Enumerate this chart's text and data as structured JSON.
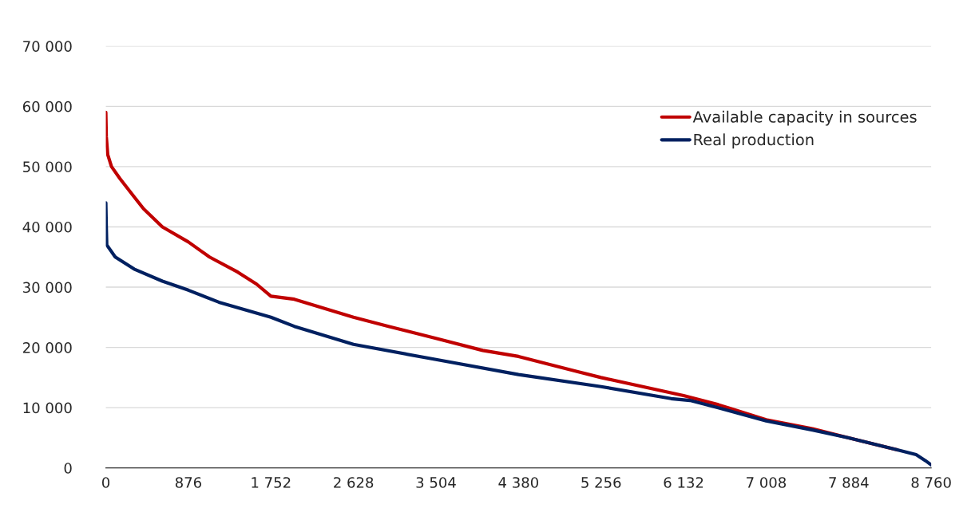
{
  "chart_data": {
    "type": "line",
    "series": [
      {
        "name": "Available capacity in sources",
        "color": "#c00000",
        "x": [
          0,
          5,
          20,
          60,
          150,
          300,
          400,
          600,
          876,
          1100,
          1400,
          1600,
          1752,
          2000,
          2628,
          3000,
          3504,
          4000,
          4380,
          5000,
          5256,
          6132,
          6500,
          7008,
          7500,
          7884,
          8400
        ],
        "values": [
          59000,
          55000,
          52000,
          50000,
          48000,
          45000,
          43000,
          40000,
          37500,
          35000,
          32500,
          30500,
          28500,
          28000,
          25000,
          23500,
          21500,
          19500,
          18500,
          16000,
          15000,
          12000,
          10500,
          8000,
          6500,
          5000,
          3000
        ]
      },
      {
        "name": "Real production",
        "color": "#002060",
        "x": [
          0,
          5,
          10,
          100,
          300,
          600,
          876,
          1200,
          1752,
          2000,
          2628,
          3504,
          4380,
          5256,
          6000,
          6200,
          6500,
          7008,
          7500,
          7884,
          8400,
          8600,
          8700,
          8760
        ],
        "values": [
          44000,
          40000,
          37000,
          35000,
          33000,
          31000,
          29500,
          27500,
          25000,
          23500,
          20500,
          18000,
          15500,
          13500,
          11500,
          11200,
          10000,
          7800,
          6300,
          5000,
          3000,
          2200,
          1200,
          500
        ]
      }
    ],
    "xlim": [
      0,
      8760
    ],
    "xticks": [
      0,
      876,
      {
        "value": 1752,
        "label": "1 752"
      },
      {
        "value": 2628,
        "label": "2 628"
      },
      {
        "value": 3504,
        "label": "3 504"
      },
      {
        "value": 4380,
        "label": "4 380"
      },
      {
        "value": 5256,
        "label": "5 256"
      },
      {
        "value": 6132,
        "label": "6 132"
      },
      {
        "value": 7008,
        "label": "7 008"
      },
      {
        "value": 7884,
        "label": "7 884"
      },
      {
        "value": 8760,
        "label": "8 760"
      }
    ],
    "ylim": [
      0,
      70000
    ],
    "yticks": [
      0,
      {
        "value": 10000,
        "label": "10 000"
      },
      {
        "value": 20000,
        "label": "20 000"
      },
      {
        "value": 30000,
        "label": "30 000"
      },
      {
        "value": 40000,
        "label": "40 000"
      },
      {
        "value": 50000,
        "label": "50 000"
      },
      {
        "value": 60000,
        "label": "60 000"
      },
      {
        "value": 70000,
        "label": "70 000"
      }
    ],
    "grid": "y",
    "legend": "top right",
    "marker": "none",
    "line_style": "solid"
  }
}
